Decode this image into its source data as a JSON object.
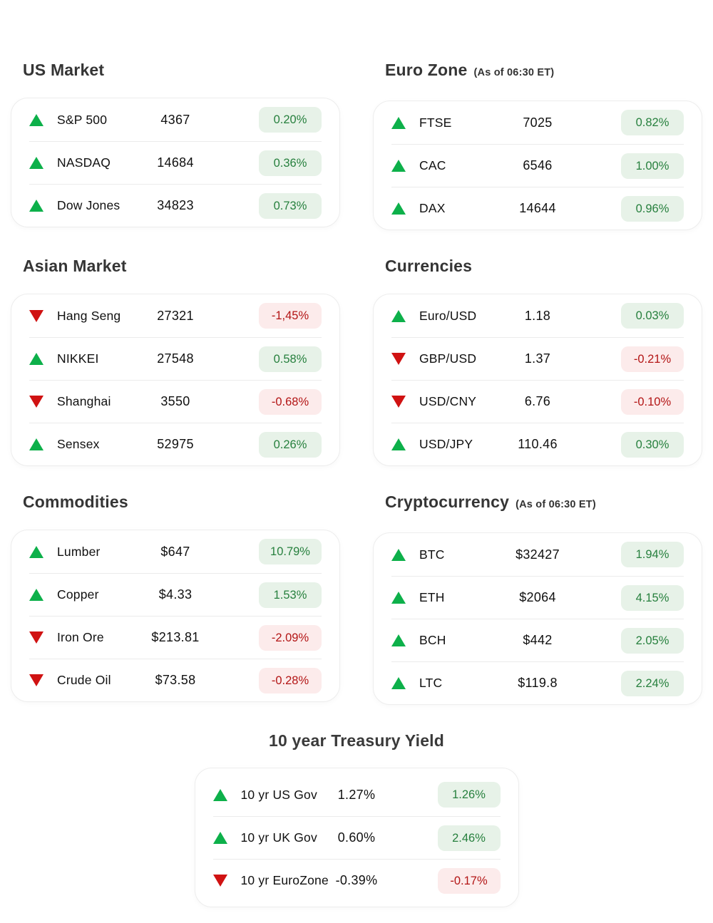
{
  "colors": {
    "positive_arrow": "#0db04a",
    "negative_arrow": "#d01212",
    "positive_badge_bg": "#e7f2e8",
    "positive_badge_text": "#27803e",
    "negative_badge_bg": "#fcebeb",
    "negative_badge_text": "#b31515",
    "card_border": "#ededed",
    "heading_text": "#353535",
    "row_text": "#101010"
  },
  "sections": [
    {
      "title": "US Market",
      "subtitle": "",
      "rows": [
        {
          "trend": "up",
          "label": "S&P 500",
          "value": "4367",
          "change": "0.20%",
          "tone": "positive"
        },
        {
          "trend": "up",
          "label": "NASDAQ",
          "value": "14684",
          "change": "0.36%",
          "tone": "positive"
        },
        {
          "trend": "up",
          "label": "Dow Jones",
          "value": "34823",
          "change": "0.73%",
          "tone": "positive"
        }
      ]
    },
    {
      "title": "Euro Zone",
      "subtitle": "(As of 06:30 ET)",
      "rows": [
        {
          "trend": "up",
          "label": "FTSE",
          "value": "7025",
          "change": "0.82%",
          "tone": "positive"
        },
        {
          "trend": "up",
          "label": "CAC",
          "value": "6546",
          "change": "1.00%",
          "tone": "positive"
        },
        {
          "trend": "up",
          "label": "DAX",
          "value": "14644",
          "change": "0.96%",
          "tone": "positive"
        }
      ]
    },
    {
      "title": "Asian Market",
      "subtitle": "",
      "rows": [
        {
          "trend": "down",
          "label": "Hang Seng",
          "value": "27321",
          "change": "-1,45%",
          "tone": "negative"
        },
        {
          "trend": "up",
          "label": "NIKKEI",
          "value": "27548",
          "change": "0.58%",
          "tone": "positive"
        },
        {
          "trend": "down",
          "label": "Shanghai",
          "value": "3550",
          "change": "-0.68%",
          "tone": "negative"
        },
        {
          "trend": "up",
          "label": "Sensex",
          "value": "52975",
          "change": "0.26%",
          "tone": "positive"
        }
      ]
    },
    {
      "title": "Currencies",
      "subtitle": "",
      "rows": [
        {
          "trend": "up",
          "label": "Euro/USD",
          "value": "1.18",
          "change": "0.03%",
          "tone": "positive"
        },
        {
          "trend": "down",
          "label": "GBP/USD",
          "value": "1.37",
          "change": "-0.21%",
          "tone": "negative"
        },
        {
          "trend": "down",
          "label": "USD/CNY",
          "value": "6.76",
          "change": "-0.10%",
          "tone": "negative"
        },
        {
          "trend": "up",
          "label": "USD/JPY",
          "value": "110.46",
          "change": "0.30%",
          "tone": "positive"
        }
      ]
    },
    {
      "title": "Commodities",
      "subtitle": "",
      "rows": [
        {
          "trend": "up",
          "label": "Lumber",
          "value": "$647",
          "change": "10.79%",
          "tone": "positive"
        },
        {
          "trend": "up",
          "label": "Copper",
          "value": "$4.33",
          "change": "1.53%",
          "tone": "positive"
        },
        {
          "trend": "down",
          "label": "Iron Ore",
          "value": "$213.81",
          "change": "-2.09%",
          "tone": "negative"
        },
        {
          "trend": "down",
          "label": "Crude Oil",
          "value": "$73.58",
          "change": "-0.28%",
          "tone": "negative"
        }
      ]
    },
    {
      "title": "Cryptocurrency",
      "subtitle": "(As of 06:30 ET)",
      "rows": [
        {
          "trend": "up",
          "label": "BTC",
          "value": "$32427",
          "change": "1.94%",
          "tone": "positive"
        },
        {
          "trend": "up",
          "label": "ETH",
          "value": "$2064",
          "change": "4.15%",
          "tone": "positive"
        },
        {
          "trend": "up",
          "label": "BCH",
          "value": "$442",
          "change": "2.05%",
          "tone": "positive"
        },
        {
          "trend": "up",
          "label": "LTC",
          "value": "$119.8",
          "change": "2.24%",
          "tone": "positive"
        }
      ]
    },
    {
      "title": "10 year Treasury Yield",
      "subtitle": "",
      "rows": [
        {
          "trend": "up",
          "label": "10 yr US Gov",
          "value": "1.27%",
          "change": "1.26%",
          "tone": "positive"
        },
        {
          "trend": "up",
          "label": "10 yr UK Gov",
          "value": "0.60%",
          "change": "2.46%",
          "tone": "positive"
        },
        {
          "trend": "down",
          "label": "10 yr EuroZone",
          "value": "-0.39%",
          "change": "-0.17%",
          "tone": "negative"
        }
      ]
    }
  ]
}
